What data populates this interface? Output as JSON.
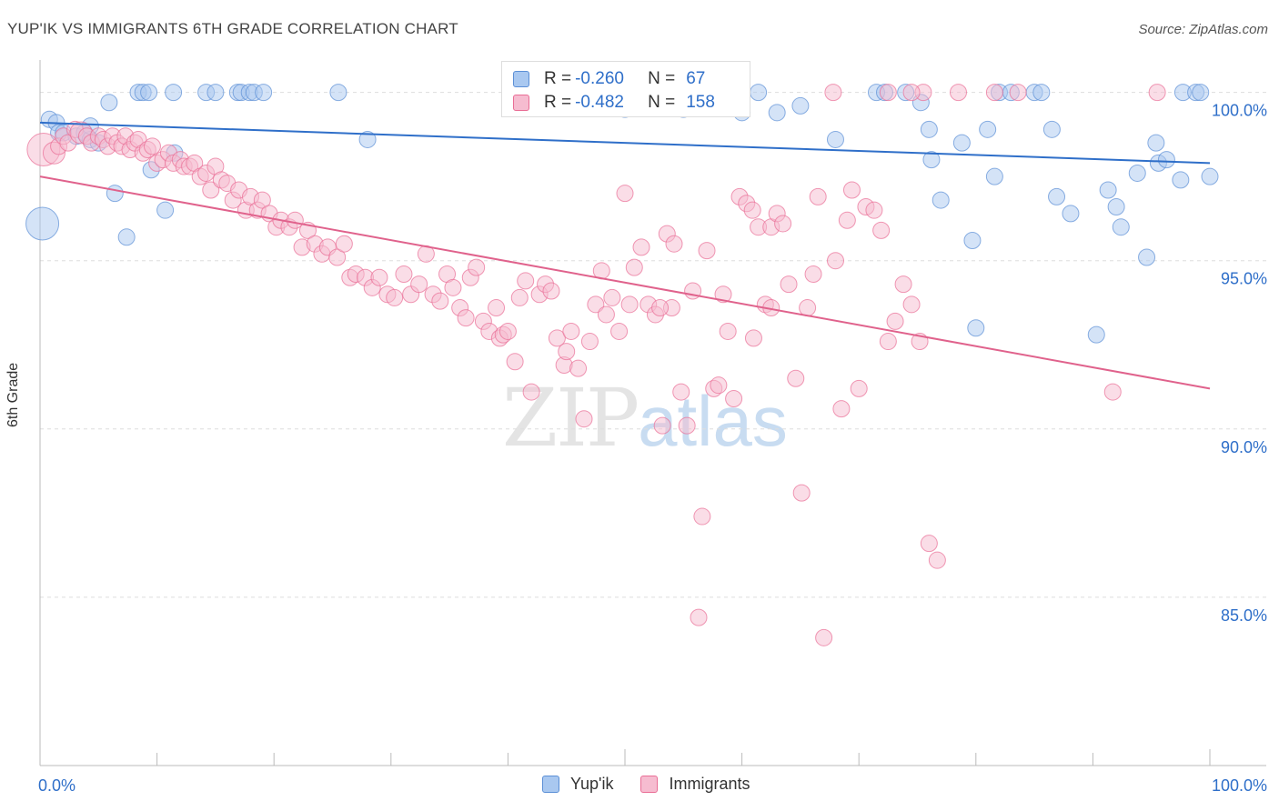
{
  "title": "YUP'IK VS IMMIGRANTS 6TH GRADE CORRELATION CHART",
  "source": "Source: ZipAtlas.com",
  "watermark": {
    "zip": "ZIP",
    "atlas": "atlas"
  },
  "colors": {
    "blue": "#5b8fd6",
    "blue_fill": "#a9c8f0",
    "pink": "#e96d95",
    "pink_fill": "#f6bcd0",
    "tick_text": "#2f6fc9",
    "grid": "#dddddd"
  },
  "legend_top": {
    "row1": {
      "r_label": "R =",
      "r_value": "-0.260",
      "n_label": "N =",
      "n_value": "67"
    },
    "row2": {
      "r_label": "R =",
      "r_value": "-0.482",
      "n_label": "N =",
      "n_value": "158"
    }
  },
  "legend_bottom": {
    "series1": "Yup'ik",
    "series2": "Immigrants"
  },
  "chart_data": {
    "type": "scatter",
    "title": "YUP'IK VS IMMIGRANTS 6TH GRADE CORRELATION CHART",
    "xlabel": "",
    "ylabel": "6th Grade",
    "xlim": [
      0,
      100
    ],
    "ylim": [
      80.0,
      100.8
    ],
    "x_tick_labels": [
      "0.0%",
      "100.0%"
    ],
    "y_ticks": [
      85,
      90,
      95,
      100
    ],
    "y_tick_labels": [
      "85.0%",
      "90.0%",
      "95.0%",
      "100.0%"
    ],
    "grid": "horizontal dashed",
    "legend_position": "top-center",
    "series": [
      {
        "name": "Yup'ik",
        "color": "#5b8fd6",
        "r": -0.26,
        "n": 67,
        "trend": {
          "x": [
            0,
            100
          ],
          "y": [
            99.1,
            97.9
          ]
        },
        "points": [
          [
            0.2,
            96.1,
            3
          ],
          [
            0.8,
            99.2,
            1
          ],
          [
            1.4,
            99.1,
            1
          ],
          [
            1.6,
            98.8,
            1
          ],
          [
            2.0,
            98.8,
            1
          ],
          [
            3.1,
            98.7,
            1
          ],
          [
            3.8,
            98.8,
            1
          ],
          [
            4.3,
            98.6,
            1
          ],
          [
            4.3,
            99.0,
            1
          ],
          [
            5.0,
            98.5,
            1
          ],
          [
            5.9,
            99.7,
            1
          ],
          [
            6.4,
            97.0,
            1
          ],
          [
            7.4,
            95.7,
            1
          ],
          [
            8.4,
            100.0,
            1
          ],
          [
            8.8,
            100.0,
            1
          ],
          [
            9.3,
            100.0,
            1
          ],
          [
            9.5,
            97.7,
            1
          ],
          [
            10.7,
            96.5,
            1
          ],
          [
            11.4,
            100.0,
            1
          ],
          [
            11.5,
            98.2,
            1
          ],
          [
            14.2,
            100.0,
            1
          ],
          [
            15.0,
            100.0,
            1
          ],
          [
            16.9,
            100.0,
            1
          ],
          [
            17.2,
            100.0,
            1
          ],
          [
            17.9,
            100.0,
            1
          ],
          [
            18.3,
            100.0,
            1
          ],
          [
            19.1,
            100.0,
            1
          ],
          [
            25.5,
            100.0,
            1
          ],
          [
            28.0,
            98.6,
            1
          ],
          [
            45.0,
            99.8,
            1
          ],
          [
            50.0,
            99.5,
            1
          ],
          [
            55.0,
            99.5,
            1
          ],
          [
            57.4,
            100.0,
            1
          ],
          [
            60.0,
            99.4,
            1
          ],
          [
            61.4,
            100.0,
            1
          ],
          [
            63.0,
            99.4,
            1
          ],
          [
            65.0,
            99.6,
            1
          ],
          [
            68.0,
            98.6,
            1
          ],
          [
            71.5,
            100.0,
            1
          ],
          [
            72.2,
            100.0,
            1
          ],
          [
            74.0,
            100.0,
            1
          ],
          [
            75.3,
            99.7,
            1
          ],
          [
            76.0,
            98.9,
            1
          ],
          [
            76.2,
            98.0,
            1
          ],
          [
            77.0,
            96.8,
            1
          ],
          [
            78.8,
            98.5,
            1
          ],
          [
            79.7,
            95.6,
            1
          ],
          [
            80.0,
            93.0,
            1
          ],
          [
            81.6,
            97.5,
            1
          ],
          [
            82.0,
            100.0,
            1
          ],
          [
            81.0,
            98.9,
            1
          ],
          [
            83.0,
            100.0,
            1
          ],
          [
            85.0,
            100.0,
            1
          ],
          [
            85.6,
            100.0,
            1
          ],
          [
            86.9,
            96.9,
            1
          ],
          [
            86.5,
            98.9,
            1
          ],
          [
            88.1,
            96.4,
            1
          ],
          [
            90.3,
            92.8,
            1
          ],
          [
            91.3,
            97.1,
            1
          ],
          [
            92.0,
            96.6,
            1
          ],
          [
            92.4,
            96.0,
            1
          ],
          [
            93.8,
            97.6,
            1
          ],
          [
            94.6,
            95.1,
            1
          ],
          [
            95.4,
            98.5,
            1
          ],
          [
            95.6,
            97.9,
            1
          ],
          [
            96.3,
            98.0,
            1
          ],
          [
            97.5,
            97.4,
            1
          ],
          [
            97.7,
            100.0,
            1
          ],
          [
            98.8,
            100.0,
            1
          ],
          [
            99.2,
            100.0,
            1
          ],
          [
            100.0,
            97.5,
            1
          ]
        ]
      },
      {
        "name": "Immigrants",
        "color": "#e96d95",
        "r": -0.482,
        "n": 158,
        "trend": {
          "x": [
            0,
            100
          ],
          "y": [
            97.5,
            91.2
          ]
        },
        "points": [
          [
            0.3,
            98.3,
            3
          ],
          [
            1.2,
            98.2,
            2
          ],
          [
            1.6,
            98.4,
            1
          ],
          [
            2.0,
            98.7,
            1
          ],
          [
            2.4,
            98.5,
            1
          ],
          [
            3.0,
            98.9,
            1
          ],
          [
            3.5,
            98.8,
            2
          ],
          [
            4.0,
            98.7,
            1
          ],
          [
            4.4,
            98.5,
            1
          ],
          [
            5.0,
            98.7,
            1
          ],
          [
            5.4,
            98.6,
            1
          ],
          [
            5.8,
            98.4,
            1
          ],
          [
            6.2,
            98.7,
            1
          ],
          [
            6.6,
            98.5,
            1
          ],
          [
            7.0,
            98.4,
            1
          ],
          [
            7.3,
            98.7,
            1
          ],
          [
            7.7,
            98.3,
            1
          ],
          [
            8.1,
            98.5,
            1
          ],
          [
            8.4,
            98.6,
            1
          ],
          [
            8.8,
            98.2,
            1
          ],
          [
            9.2,
            98.3,
            1
          ],
          [
            9.6,
            98.4,
            1
          ],
          [
            10.0,
            97.9,
            1
          ],
          [
            10.5,
            98.0,
            1
          ],
          [
            11.0,
            98.2,
            1
          ],
          [
            11.4,
            97.9,
            1
          ],
          [
            12.0,
            98.0,
            1
          ],
          [
            12.3,
            97.8,
            1
          ],
          [
            12.8,
            97.8,
            1
          ],
          [
            13.2,
            97.9,
            1
          ],
          [
            13.7,
            97.5,
            1
          ],
          [
            14.2,
            97.6,
            1
          ],
          [
            14.6,
            97.1,
            1
          ],
          [
            15.0,
            97.8,
            1
          ],
          [
            15.5,
            97.4,
            1
          ],
          [
            16.0,
            97.3,
            1
          ],
          [
            16.5,
            96.8,
            1
          ],
          [
            17.0,
            97.1,
            1
          ],
          [
            17.6,
            96.5,
            1
          ],
          [
            18.0,
            96.9,
            1
          ],
          [
            18.6,
            96.5,
            1
          ],
          [
            19.0,
            96.8,
            1
          ],
          [
            19.6,
            96.4,
            1
          ],
          [
            20.2,
            96.0,
            1
          ],
          [
            20.6,
            96.2,
            1
          ],
          [
            21.3,
            96.0,
            1
          ],
          [
            21.8,
            96.2,
            1
          ],
          [
            22.4,
            95.4,
            1
          ],
          [
            22.9,
            95.9,
            1
          ],
          [
            23.5,
            95.5,
            1
          ],
          [
            24.1,
            95.2,
            1
          ],
          [
            24.6,
            95.4,
            1
          ],
          [
            25.4,
            95.1,
            1
          ],
          [
            26.0,
            95.5,
            1
          ],
          [
            26.5,
            94.5,
            1
          ],
          [
            27.0,
            94.6,
            1
          ],
          [
            27.8,
            94.5,
            1
          ],
          [
            28.4,
            94.2,
            1
          ],
          [
            29.0,
            94.5,
            1
          ],
          [
            29.7,
            94.0,
            1
          ],
          [
            30.3,
            93.9,
            1
          ],
          [
            31.1,
            94.6,
            1
          ],
          [
            31.7,
            94.0,
            1
          ],
          [
            32.4,
            94.3,
            1
          ],
          [
            33.0,
            95.2,
            1
          ],
          [
            33.6,
            94.0,
            1
          ],
          [
            34.2,
            93.8,
            1
          ],
          [
            34.8,
            94.6,
            1
          ],
          [
            35.3,
            94.2,
            1
          ],
          [
            35.9,
            93.6,
            1
          ],
          [
            36.4,
            93.3,
            1
          ],
          [
            36.8,
            94.5,
            1
          ],
          [
            37.3,
            94.8,
            1
          ],
          [
            37.9,
            93.2,
            1
          ],
          [
            38.4,
            92.9,
            1
          ],
          [
            39.0,
            93.6,
            1
          ],
          [
            39.3,
            92.7,
            1
          ],
          [
            39.6,
            92.8,
            1
          ],
          [
            40.0,
            92.9,
            1
          ],
          [
            40.6,
            92.0,
            1
          ],
          [
            41.0,
            93.9,
            1
          ],
          [
            41.5,
            94.4,
            1
          ],
          [
            42.0,
            91.1,
            1
          ],
          [
            42.7,
            94.0,
            1
          ],
          [
            43.2,
            94.3,
            1
          ],
          [
            43.7,
            94.1,
            1
          ],
          [
            44.2,
            92.7,
            1
          ],
          [
            44.8,
            91.9,
            1
          ],
          [
            45.0,
            92.3,
            1
          ],
          [
            45.4,
            92.9,
            1
          ],
          [
            46.0,
            91.8,
            1
          ],
          [
            46.5,
            90.3,
            1
          ],
          [
            47.0,
            92.6,
            1
          ],
          [
            47.5,
            93.7,
            1
          ],
          [
            48.0,
            94.7,
            1
          ],
          [
            48.4,
            93.4,
            1
          ],
          [
            48.9,
            93.9,
            1
          ],
          [
            49.5,
            92.9,
            1
          ],
          [
            50.0,
            97.0,
            1
          ],
          [
            50.4,
            93.7,
            1
          ],
          [
            50.8,
            94.8,
            1
          ],
          [
            51.4,
            95.4,
            1
          ],
          [
            52.0,
            93.7,
            1
          ],
          [
            52.6,
            93.4,
            1
          ],
          [
            53.2,
            90.1,
            1
          ],
          [
            53.6,
            95.8,
            1
          ],
          [
            54.2,
            95.5,
            1
          ],
          [
            54.8,
            91.1,
            1
          ],
          [
            55.3,
            90.1,
            1
          ],
          [
            55.8,
            94.1,
            1
          ],
          [
            56.3,
            84.4,
            1
          ],
          [
            56.6,
            87.4,
            1
          ],
          [
            57.0,
            95.3,
            1
          ],
          [
            57.6,
            91.2,
            1
          ],
          [
            58.0,
            91.3,
            1
          ],
          [
            58.4,
            94.0,
            1
          ],
          [
            58.8,
            92.9,
            1
          ],
          [
            59.3,
            90.9,
            1
          ],
          [
            59.8,
            96.9,
            1
          ],
          [
            60.4,
            96.7,
            1
          ],
          [
            60.9,
            96.5,
            1
          ],
          [
            61.4,
            96.0,
            1
          ],
          [
            62.0,
            93.7,
            1
          ],
          [
            62.5,
            96.0,
            1
          ],
          [
            63.0,
            96.4,
            1
          ],
          [
            63.5,
            96.1,
            1
          ],
          [
            64.0,
            94.3,
            1
          ],
          [
            64.6,
            91.5,
            1
          ],
          [
            65.1,
            88.1,
            1
          ],
          [
            65.6,
            93.6,
            1
          ],
          [
            66.1,
            94.6,
            1
          ],
          [
            67.0,
            83.8,
            1
          ],
          [
            68.0,
            95.0,
            1
          ],
          [
            68.5,
            90.6,
            1
          ],
          [
            69.0,
            96.2,
            1
          ],
          [
            69.4,
            97.1,
            1
          ],
          [
            70.0,
            91.2,
            1
          ],
          [
            70.6,
            96.6,
            1
          ],
          [
            71.3,
            96.5,
            1
          ],
          [
            71.9,
            95.9,
            1
          ],
          [
            72.5,
            92.6,
            1
          ],
          [
            73.1,
            93.2,
            1
          ],
          [
            73.8,
            94.3,
            1
          ],
          [
            74.5,
            93.7,
            1
          ],
          [
            75.2,
            92.6,
            1
          ],
          [
            76.0,
            86.6,
            1
          ],
          [
            76.7,
            86.1,
            1
          ],
          [
            91.7,
            91.1,
            1
          ],
          [
            67.8,
            100.0,
            1
          ],
          [
            72.5,
            100.0,
            1
          ],
          [
            75.5,
            100.0,
            1
          ],
          [
            78.5,
            100.0,
            1
          ],
          [
            81.6,
            100.0,
            1
          ],
          [
            83.6,
            100.0,
            1
          ],
          [
            95.5,
            100.0,
            1
          ],
          [
            74.5,
            100.0,
            1
          ],
          [
            58.5,
            100.0,
            1
          ],
          [
            66.5,
            96.9,
            1
          ],
          [
            62.5,
            93.6,
            1
          ],
          [
            61.0,
            92.7,
            1
          ],
          [
            54.0,
            93.6,
            1
          ],
          [
            53.0,
            93.6,
            1
          ]
        ]
      }
    ]
  }
}
